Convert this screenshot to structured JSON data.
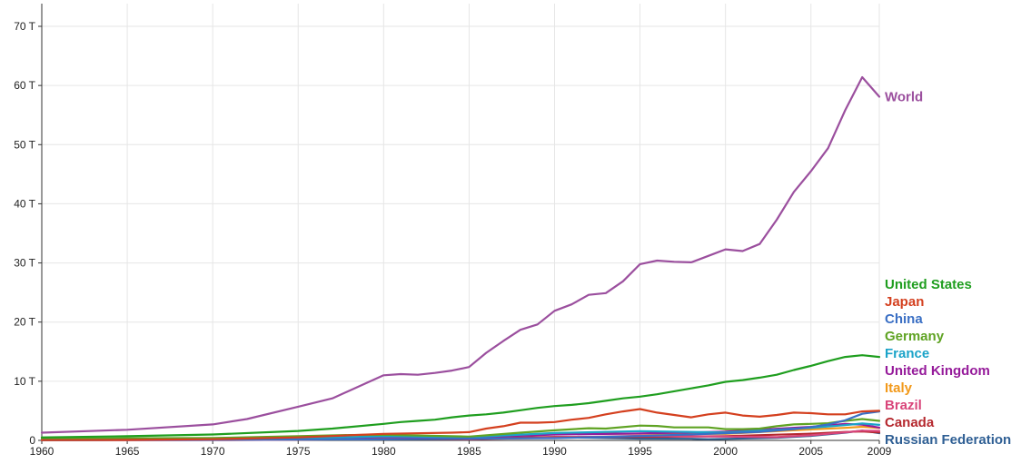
{
  "chart_data": {
    "type": "line",
    "title": "",
    "xlabel": "",
    "ylabel": "",
    "xlim": [
      1960,
      2009
    ],
    "ylim": [
      0,
      70
    ],
    "x_ticks": [
      {
        "value": 1960,
        "label": "1960"
      },
      {
        "value": 1965,
        "label": "1965"
      },
      {
        "value": 1970,
        "label": "1970"
      },
      {
        "value": 1975,
        "label": "1975"
      },
      {
        "value": 1980,
        "label": "1980"
      },
      {
        "value": 1985,
        "label": "1985"
      },
      {
        "value": 1990,
        "label": "1990"
      },
      {
        "value": 1995,
        "label": "1995"
      },
      {
        "value": 2000,
        "label": "2000"
      },
      {
        "value": 2005,
        "label": "2005"
      },
      {
        "value": 2009,
        "label": "2009"
      }
    ],
    "y_ticks": [
      {
        "value": 0,
        "label": "0"
      },
      {
        "value": 10,
        "label": "10 T"
      },
      {
        "value": 20,
        "label": "20 T"
      },
      {
        "value": 30,
        "label": "30 T"
      },
      {
        "value": 40,
        "label": "40 T"
      },
      {
        "value": 50,
        "label": "50 T"
      },
      {
        "value": 60,
        "label": "60 T"
      },
      {
        "value": 70,
        "label": "70 T"
      }
    ],
    "grid": true,
    "legend_position": "right",
    "series": [
      {
        "name": "World",
        "color": "#9b4f9e",
        "points": [
          [
            1960,
            1.3
          ],
          [
            1965,
            1.8
          ],
          [
            1970,
            2.7
          ],
          [
            1972,
            3.6
          ],
          [
            1975,
            5.7
          ],
          [
            1977,
            7.1
          ],
          [
            1979,
            9.7
          ],
          [
            1980,
            11.0
          ],
          [
            1981,
            11.2
          ],
          [
            1982,
            11.1
          ],
          [
            1983,
            11.4
          ],
          [
            1984,
            11.8
          ],
          [
            1985,
            12.4
          ],
          [
            1986,
            14.8
          ],
          [
            1987,
            16.8
          ],
          [
            1988,
            18.7
          ],
          [
            1989,
            19.6
          ],
          [
            1990,
            21.9
          ],
          [
            1991,
            23.0
          ],
          [
            1992,
            24.6
          ],
          [
            1993,
            24.9
          ],
          [
            1994,
            26.9
          ],
          [
            1995,
            29.8
          ],
          [
            1996,
            30.4
          ],
          [
            1997,
            30.2
          ],
          [
            1998,
            30.1
          ],
          [
            1999,
            31.2
          ],
          [
            2000,
            32.3
          ],
          [
            2001,
            32.0
          ],
          [
            2002,
            33.2
          ],
          [
            2003,
            37.3
          ],
          [
            2004,
            42.0
          ],
          [
            2005,
            45.5
          ],
          [
            2006,
            49.4
          ],
          [
            2007,
            55.8
          ],
          [
            2008,
            61.4
          ],
          [
            2009,
            58.1
          ]
        ]
      },
      {
        "name": "United States",
        "color": "#1f9e1f",
        "points": [
          [
            1960,
            0.5
          ],
          [
            1965,
            0.7
          ],
          [
            1970,
            1.0
          ],
          [
            1975,
            1.6
          ],
          [
            1977,
            2.0
          ],
          [
            1980,
            2.8
          ],
          [
            1981,
            3.1
          ],
          [
            1982,
            3.3
          ],
          [
            1983,
            3.5
          ],
          [
            1984,
            3.9
          ],
          [
            1985,
            4.2
          ],
          [
            1986,
            4.4
          ],
          [
            1987,
            4.7
          ],
          [
            1988,
            5.1
          ],
          [
            1989,
            5.5
          ],
          [
            1990,
            5.8
          ],
          [
            1991,
            6.0
          ],
          [
            1992,
            6.3
          ],
          [
            1993,
            6.7
          ],
          [
            1994,
            7.1
          ],
          [
            1995,
            7.4
          ],
          [
            1996,
            7.8
          ],
          [
            1997,
            8.3
          ],
          [
            1998,
            8.8
          ],
          [
            1999,
            9.3
          ],
          [
            2000,
            9.9
          ],
          [
            2001,
            10.2
          ],
          [
            2002,
            10.6
          ],
          [
            2003,
            11.1
          ],
          [
            2004,
            11.9
          ],
          [
            2005,
            12.6
          ],
          [
            2006,
            13.4
          ],
          [
            2007,
            14.1
          ],
          [
            2008,
            14.4
          ],
          [
            2009,
            14.1
          ]
        ]
      },
      {
        "name": "Japan",
        "color": "#d4401f",
        "points": [
          [
            1960,
            0.04
          ],
          [
            1965,
            0.09
          ],
          [
            1970,
            0.2
          ],
          [
            1975,
            0.5
          ],
          [
            1980,
            1.1
          ],
          [
            1984,
            1.3
          ],
          [
            1985,
            1.4
          ],
          [
            1986,
            2.0
          ],
          [
            1987,
            2.4
          ],
          [
            1988,
            3.0
          ],
          [
            1989,
            3.0
          ],
          [
            1990,
            3.1
          ],
          [
            1991,
            3.5
          ],
          [
            1992,
            3.8
          ],
          [
            1993,
            4.4
          ],
          [
            1994,
            4.9
          ],
          [
            1995,
            5.3
          ],
          [
            1996,
            4.7
          ],
          [
            1997,
            4.3
          ],
          [
            1998,
            3.9
          ],
          [
            1999,
            4.4
          ],
          [
            2000,
            4.7
          ],
          [
            2001,
            4.2
          ],
          [
            2002,
            4.0
          ],
          [
            2003,
            4.3
          ],
          [
            2004,
            4.7
          ],
          [
            2005,
            4.6
          ],
          [
            2006,
            4.4
          ],
          [
            2007,
            4.4
          ],
          [
            2008,
            4.9
          ],
          [
            2009,
            5.0
          ]
        ]
      },
      {
        "name": "China",
        "color": "#3a6fc4",
        "points": [
          [
            1960,
            0.06
          ],
          [
            1965,
            0.07
          ],
          [
            1970,
            0.09
          ],
          [
            1975,
            0.16
          ],
          [
            1980,
            0.19
          ],
          [
            1985,
            0.31
          ],
          [
            1990,
            0.39
          ],
          [
            1995,
            0.73
          ],
          [
            2000,
            1.2
          ],
          [
            2002,
            1.45
          ],
          [
            2004,
            1.9
          ],
          [
            2005,
            2.26
          ],
          [
            2006,
            2.7
          ],
          [
            2007,
            3.4
          ],
          [
            2008,
            4.5
          ],
          [
            2009,
            4.9
          ]
        ]
      },
      {
        "name": "Germany",
        "color": "#5fa323",
        "points": [
          [
            1960,
            0.3
          ],
          [
            1970,
            0.4
          ],
          [
            1975,
            0.7
          ],
          [
            1978,
            0.9
          ],
          [
            1980,
            0.95
          ],
          [
            1985,
            0.64
          ],
          [
            1988,
            1.3
          ],
          [
            1990,
            1.7
          ],
          [
            1992,
            2.06
          ],
          [
            1993,
            1.99
          ],
          [
            1995,
            2.5
          ],
          [
            1996,
            2.44
          ],
          [
            1997,
            2.2
          ],
          [
            1998,
            2.2
          ],
          [
            1999,
            2.2
          ],
          [
            2000,
            1.9
          ],
          [
            2001,
            1.9
          ],
          [
            2002,
            2.0
          ],
          [
            2003,
            2.4
          ],
          [
            2004,
            2.7
          ],
          [
            2005,
            2.8
          ],
          [
            2006,
            2.9
          ],
          [
            2007,
            3.3
          ],
          [
            2008,
            3.6
          ],
          [
            2009,
            3.3
          ]
        ]
      },
      {
        "name": "France",
        "color": "#1aa3c8",
        "points": [
          [
            1960,
            0.06
          ],
          [
            1970,
            0.15
          ],
          [
            1975,
            0.36
          ],
          [
            1980,
            0.69
          ],
          [
            1985,
            0.55
          ],
          [
            1990,
            1.24
          ],
          [
            1995,
            1.57
          ],
          [
            2000,
            1.33
          ],
          [
            2003,
            1.8
          ],
          [
            2005,
            2.14
          ],
          [
            2007,
            2.58
          ],
          [
            2008,
            2.85
          ],
          [
            2009,
            2.62
          ]
        ]
      },
      {
        "name": "United Kingdom",
        "color": "#951a9a",
        "points": [
          [
            1960,
            0.07
          ],
          [
            1970,
            0.13
          ],
          [
            1975,
            0.24
          ],
          [
            1980,
            0.54
          ],
          [
            1985,
            0.49
          ],
          [
            1990,
            1.0
          ],
          [
            1995,
            1.16
          ],
          [
            2000,
            1.48
          ],
          [
            2005,
            2.28
          ],
          [
            2007,
            2.8
          ],
          [
            2008,
            2.65
          ],
          [
            2009,
            2.17
          ]
        ]
      },
      {
        "name": "Italy",
        "color": "#f2991a",
        "points": [
          [
            1960,
            0.04
          ],
          [
            1970,
            0.11
          ],
          [
            1975,
            0.23
          ],
          [
            1980,
            0.46
          ],
          [
            1985,
            0.43
          ],
          [
            1990,
            1.13
          ],
          [
            1995,
            1.13
          ],
          [
            2000,
            1.1
          ],
          [
            2005,
            1.85
          ],
          [
            2007,
            2.12
          ],
          [
            2008,
            2.3
          ],
          [
            2009,
            2.11
          ]
        ]
      },
      {
        "name": "Brazil",
        "color": "#d9457a",
        "points": [
          [
            1960,
            0.02
          ],
          [
            1970,
            0.04
          ],
          [
            1975,
            0.12
          ],
          [
            1980,
            0.24
          ],
          [
            1985,
            0.22
          ],
          [
            1990,
            0.46
          ],
          [
            1995,
            0.77
          ],
          [
            2000,
            0.64
          ],
          [
            2003,
            0.55
          ],
          [
            2005,
            0.88
          ],
          [
            2007,
            1.37
          ],
          [
            2008,
            1.65
          ],
          [
            2009,
            1.6
          ]
        ]
      },
      {
        "name": "Canada",
        "color": "#b5282e",
        "points": [
          [
            1960,
            0.04
          ],
          [
            1970,
            0.09
          ],
          [
            1975,
            0.17
          ],
          [
            1980,
            0.27
          ],
          [
            1985,
            0.36
          ],
          [
            1990,
            0.58
          ],
          [
            1995,
            0.59
          ],
          [
            2000,
            0.72
          ],
          [
            2005,
            1.13
          ],
          [
            2007,
            1.42
          ],
          [
            2008,
            1.5
          ],
          [
            2009,
            1.34
          ]
        ]
      },
      {
        "name": "Russian Federation",
        "color": "#2f5f94",
        "points": [
          [
            1989,
            0.5
          ],
          [
            1990,
            0.52
          ],
          [
            1992,
            0.46
          ],
          [
            1995,
            0.31
          ],
          [
            1998,
            0.27
          ],
          [
            1999,
            0.2
          ],
          [
            2000,
            0.26
          ],
          [
            2003,
            0.43
          ],
          [
            2005,
            0.76
          ],
          [
            2007,
            1.3
          ],
          [
            2008,
            1.66
          ],
          [
            2009,
            1.22
          ]
        ]
      }
    ]
  }
}
